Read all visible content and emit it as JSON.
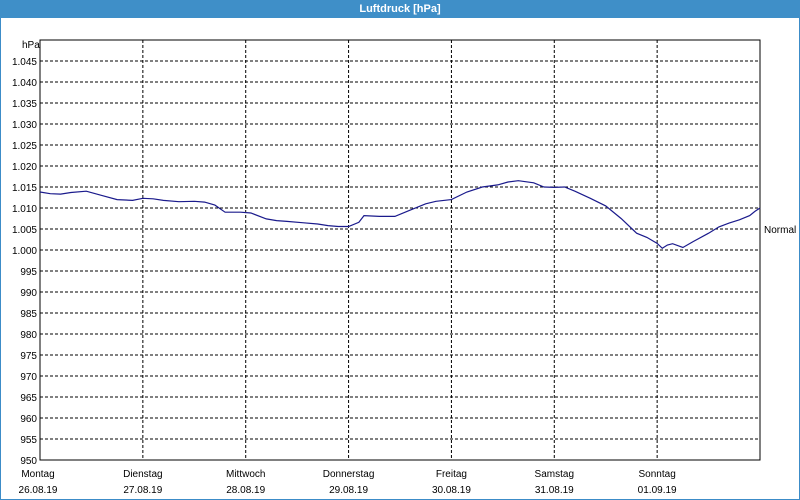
{
  "window": {
    "title": "Luftdruck [hPa]"
  },
  "chart_data": {
    "type": "line",
    "title": "Luftdruck [hPa]",
    "ylabel": "hPa",
    "ylim": [
      950,
      1050
    ],
    "yticks": [
      950,
      955,
      960,
      965,
      970,
      975,
      980,
      985,
      990,
      995,
      1000,
      1005,
      1010,
      1015,
      1020,
      1025,
      1030,
      1035,
      1040,
      1045
    ],
    "y_tick_labels": [
      "950",
      "955",
      "960",
      "965",
      "970",
      "975",
      "980",
      "985",
      "990",
      "995",
      "1.000",
      "1.005",
      "1.010",
      "1.015",
      "1.020",
      "1.025",
      "1.030",
      "1.035",
      "1.040",
      "1.045"
    ],
    "x_unit": "days from Montag 00:00",
    "xlim": [
      0,
      7
    ],
    "x_ticks": [
      {
        "day": "Montag",
        "date": "26.08.19"
      },
      {
        "day": "Dienstag",
        "date": "27.08.19"
      },
      {
        "day": "Mittwoch",
        "date": "28.08.19"
      },
      {
        "day": "Donnerstag",
        "date": "29.08.19"
      },
      {
        "day": "Freitag",
        "date": "30.08.19"
      },
      {
        "day": "Samstag",
        "date": "31.08.19"
      },
      {
        "day": "Sonntag",
        "date": "01.09.19"
      }
    ],
    "reference_line": {
      "label": "Normal",
      "value": 1005
    },
    "grid": true,
    "series": [
      {
        "color": "#1a1a8c",
        "x": [
          0,
          0.1,
          0.2,
          0.3,
          0.45,
          0.6,
          0.75,
          0.9,
          1.0,
          1.1,
          1.2,
          1.35,
          1.5,
          1.6,
          1.7,
          1.8,
          1.95,
          2.05,
          2.2,
          2.3,
          2.4,
          2.55,
          2.7,
          2.8,
          2.9,
          3.0,
          3.1,
          3.15,
          3.3,
          3.45,
          3.6,
          3.75,
          3.85,
          4.0,
          4.15,
          4.3,
          4.45,
          4.55,
          4.65,
          4.8,
          4.9,
          5.0,
          5.1,
          5.2,
          5.35,
          5.5,
          5.65,
          5.8,
          5.9,
          6.0,
          6.05,
          6.1,
          6.15,
          6.25,
          6.35,
          6.5,
          6.6,
          6.7,
          6.8,
          6.9,
          6.95,
          7.0
        ],
        "values": [
          1013.8,
          1013.4,
          1013.3,
          1013.7,
          1014.0,
          1013.0,
          1012.0,
          1011.8,
          1012.3,
          1012.2,
          1011.8,
          1011.5,
          1011.6,
          1011.4,
          1010.7,
          1009.0,
          1009.0,
          1008.8,
          1007.4,
          1007.0,
          1006.8,
          1006.5,
          1006.2,
          1005.8,
          1005.6,
          1005.6,
          1006.6,
          1008.2,
          1008.0,
          1008.0,
          1009.5,
          1011.0,
          1011.6,
          1012.0,
          1013.8,
          1015.0,
          1015.5,
          1016.2,
          1016.5,
          1016.0,
          1015.0,
          1014.9,
          1015.0,
          1014.0,
          1012.3,
          1010.5,
          1007.5,
          1004.0,
          1003.0,
          1001.6,
          1000.4,
          1001.2,
          1001.5,
          1000.6,
          1002.0,
          1004.0,
          1005.5,
          1006.4,
          1007.2,
          1008.2,
          1009.2,
          1010.0
        ]
      }
    ]
  }
}
